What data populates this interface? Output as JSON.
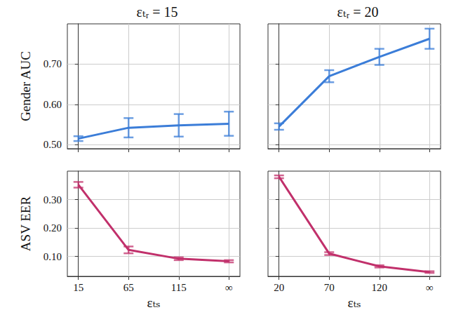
{
  "chart_data": [
    {
      "type": "line",
      "title": "εₜᵣ = 15",
      "y_label": "Gender AUC",
      "categories": [
        null,
        null,
        null,
        null
      ],
      "series": [
        {
          "color": "#3b7dd8",
          "marker": "none",
          "values": [
            0.515,
            0.542,
            0.548,
            0.552
          ],
          "errors": [
            0.006,
            0.024,
            0.028,
            0.03
          ]
        }
      ],
      "ylim": [
        0.49,
        0.8
      ],
      "yticks": [
        {
          "value": 0.5,
          "label": "0.50"
        },
        {
          "value": 0.6,
          "label": "0.60"
        },
        {
          "value": 0.7,
          "label": "0.70"
        }
      ],
      "grid": true,
      "tick_labels": "y"
    },
    {
      "type": "line",
      "title": "εₜᵣ = 20",
      "categories": [
        null,
        null,
        null,
        null
      ],
      "series": [
        {
          "color": "#3b7dd8",
          "marker": "none",
          "values": [
            0.545,
            0.67,
            0.718,
            0.763
          ],
          "errors": [
            0.008,
            0.015,
            0.02,
            0.025
          ]
        }
      ],
      "ylim": [
        0.49,
        0.8
      ],
      "yticks": [
        {
          "value": 0.5,
          "label": "0.50"
        },
        {
          "value": 0.6,
          "label": "0.60"
        },
        {
          "value": 0.7,
          "label": "0.70"
        }
      ],
      "grid": true,
      "tick_labels": false
    },
    {
      "type": "line",
      "y_label": "ASV EER",
      "x_label": "εₜₛ",
      "categories": [
        "15",
        "65",
        "115",
        "∞"
      ],
      "series": [
        {
          "color": "#c1306b",
          "marker": "none",
          "values": [
            0.352,
            0.123,
            0.092,
            0.083
          ],
          "errors": [
            0.01,
            0.012,
            0.005,
            0.004
          ]
        }
      ],
      "ylim": [
        0.03,
        0.4
      ],
      "yticks": [
        {
          "value": 0.1,
          "label": "0.10"
        },
        {
          "value": 0.2,
          "label": "0.20"
        },
        {
          "value": 0.3,
          "label": "0.30"
        }
      ],
      "grid": true
    },
    {
      "type": "line",
      "x_label": "εₜₛ",
      "categories": [
        "20",
        "70",
        "120",
        "∞"
      ],
      "series": [
        {
          "color": "#c1306b",
          "marker": "none",
          "values": [
            0.38,
            0.11,
            0.065,
            0.045
          ],
          "errors": [
            0.005,
            0.005,
            0.004,
            0.003
          ]
        }
      ],
      "ylim": [
        0.03,
        0.4
      ],
      "yticks": [
        {
          "value": 0.1,
          "label": "0.10"
        },
        {
          "value": 0.2,
          "label": "0.20"
        },
        {
          "value": 0.3,
          "label": "0.30"
        }
      ],
      "grid": true,
      "tick_labels": "x"
    }
  ]
}
